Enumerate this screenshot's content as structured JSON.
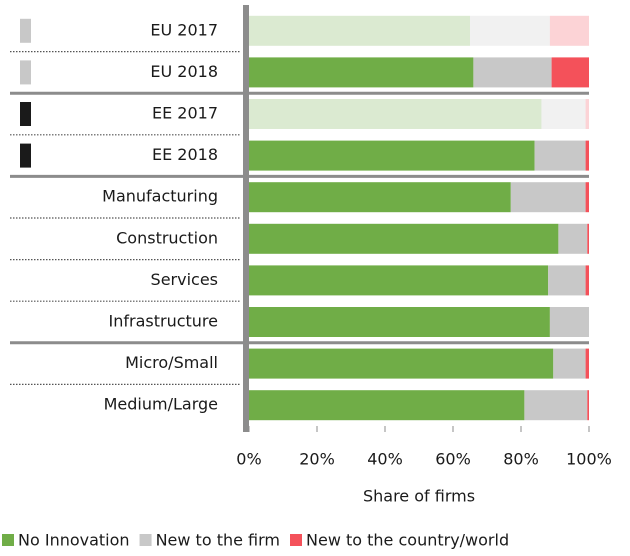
{
  "chart_data": {
    "type": "stacked-bar-horizontal",
    "categories": [
      "EU 2017",
      "EU 2018",
      "EE  2017",
      "EE  2018",
      "Manufacturing",
      "Construction",
      "Services",
      "Infrastructure",
      "Micro/Small",
      "Medium/Large"
    ],
    "series": [
      {
        "name": "No Innovation",
        "color": "#70ad47",
        "values": [
          65,
          66,
          86,
          84,
          77,
          91,
          88,
          88.5,
          89.5,
          81
        ]
      },
      {
        "name": "New to the firm",
        "color": "#c8c8c8",
        "values": [
          23.5,
          23,
          13,
          15,
          22,
          8.5,
          11,
          11.5,
          9.5,
          18.5
        ]
      },
      {
        "name": "New to the country/world",
        "color": "#f4515a",
        "values": [
          11.5,
          11,
          1,
          1,
          1,
          0.5,
          1,
          0,
          1,
          0.5
        ]
      }
    ],
    "bar_opacity": [
      0.25,
      1,
      0.25,
      1,
      1,
      1,
      1,
      1,
      1,
      1
    ],
    "marker_colors": [
      "#c8c8c8",
      "#c8c8c8",
      "#1a1a1a",
      "#1a1a1a",
      null,
      null,
      null,
      null,
      null,
      null
    ],
    "groups": [
      2,
      2,
      4,
      2
    ],
    "xlabel": "Share of firms",
    "xlim": [
      0,
      100
    ],
    "xticks": [
      {
        "value": 0,
        "label": "0%"
      },
      {
        "value": 20,
        "label": "20%"
      },
      {
        "value": 40,
        "label": "40%"
      },
      {
        "value": 60,
        "label": "60%"
      },
      {
        "value": 80,
        "label": "80%"
      },
      {
        "value": 100,
        "label": "100%"
      }
    ],
    "legend": "bottom"
  }
}
